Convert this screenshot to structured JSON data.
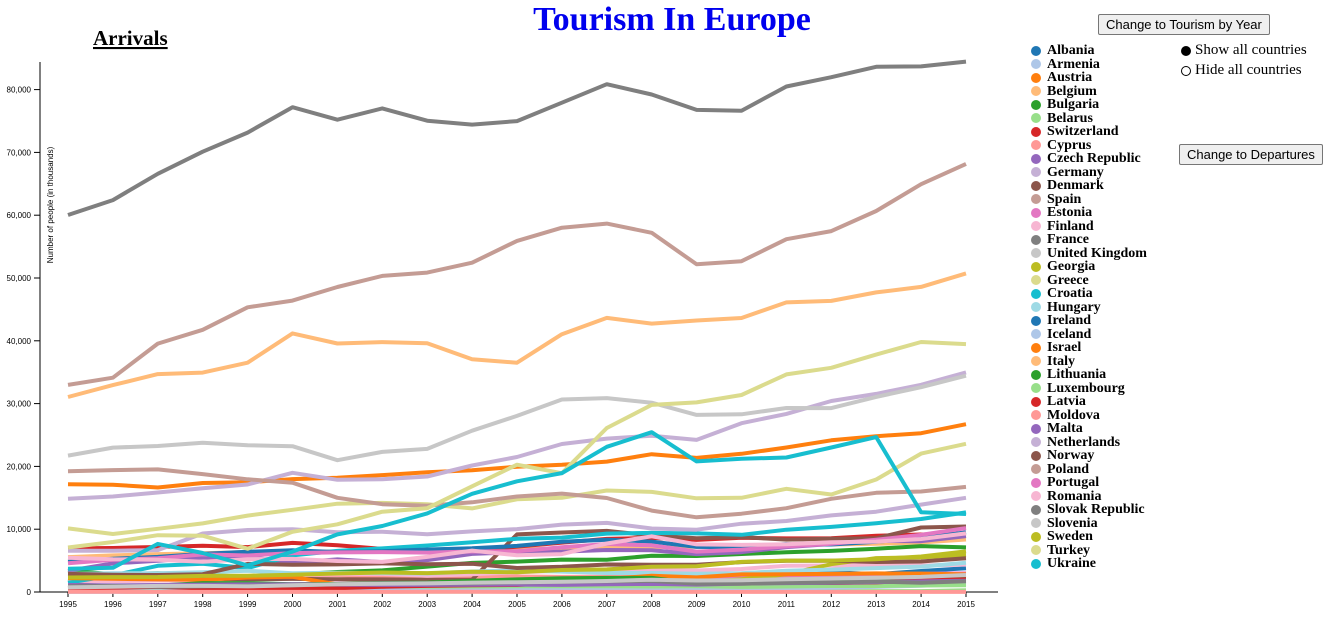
{
  "page": {
    "title": "Tourism In Europe"
  },
  "controls": {
    "year_button": "Change to Tourism by Year",
    "departures_button": "Change to Departures",
    "show_all": "Show all countries",
    "hide_all": "Hide all countries",
    "show_all_selected": true
  },
  "chart_data": {
    "type": "line",
    "title": "Arrivals",
    "xlabel": "",
    "ylabel": "Number of people (in thousands)",
    "x": [
      1995,
      1996,
      1997,
      1998,
      1999,
      2000,
      2001,
      2002,
      2003,
      2004,
      2005,
      2006,
      2007,
      2008,
      2009,
      2010,
      2011,
      2012,
      2013,
      2014,
      2015
    ],
    "ylim": [
      0,
      85000
    ],
    "yticks": [
      0,
      10000,
      20000,
      30000,
      40000,
      50000,
      60000,
      70000,
      80000
    ],
    "ytick_labels": [
      "0",
      "10,000",
      "20,000",
      "30,000",
      "40,000",
      "50,000",
      "60,000",
      "70,000",
      "80,000"
    ],
    "legend_position": "right",
    "series": [
      {
        "name": "Albania",
        "color": "#1f77b4",
        "values": [
          304,
          287,
          119,
          184,
          371,
          317,
          354,
          470,
          557,
          645,
          748,
          937,
          1127,
          1420,
          1856,
          2417,
          2932,
          3156,
          2857,
          3341,
          3784
        ]
      },
      {
        "name": "Armenia",
        "color": "#aec7e8",
        "values": [
          12,
          13,
          23,
          32,
          41,
          45,
          123,
          162,
          206,
          263,
          319,
          381,
          511,
          558,
          575,
          684,
          758,
          843,
          1084,
          1204,
          1192
        ]
      },
      {
        "name": "Austria",
        "color": "#ff7f0e",
        "values": [
          17173,
          17090,
          16647,
          17352,
          17467,
          17982,
          18180,
          18611,
          19078,
          19373,
          19952,
          20269,
          20766,
          21935,
          21355,
          22004,
          23012,
          24151,
          24813,
          25291,
          26719
        ]
      },
      {
        "name": "Belgium",
        "color": "#ffbb78",
        "values": [
          5560,
          5829,
          6037,
          6179,
          6369,
          6457,
          6452,
          6720,
          6690,
          6710,
          6747,
          6995,
          7045,
          7165,
          7217,
          7186,
          7494,
          7560,
          7684,
          7887,
          8355
        ]
      },
      {
        "name": "Bulgaria",
        "color": "#2ca02c",
        "values": [
          3466,
          2795,
          2980,
          2667,
          2472,
          2785,
          3186,
          3433,
          4048,
          4630,
          4837,
          5158,
          5151,
          5780,
          5739,
          6047,
          6328,
          6541,
          6897,
          7311,
          7099
        ]
      },
      {
        "name": "Belarus",
        "color": "#98df8a",
        "values": [
          161,
          234,
          254,
          355,
          60,
          60,
          61,
          63,
          64,
          67,
          91,
          88,
          105,
          91,
          95,
          119,
          116,
          119,
          137,
          137,
          276
        ]
      },
      {
        "name": "Switzerland",
        "color": "#d62728",
        "values": [
          6946,
          7004,
          7165,
          7355,
          7154,
          7821,
          7455,
          6868,
          6530,
          6530,
          7229,
          7863,
          8448,
          8608,
          8294,
          8628,
          8534,
          8566,
          8967,
          9158,
          9305
        ]
      },
      {
        "name": "Cyprus",
        "color": "#ff9896",
        "values": [
          2100,
          1950,
          2088,
          2223,
          2434,
          2686,
          2697,
          2418,
          2303,
          2349,
          2470,
          2401,
          2416,
          2404,
          2141,
          2173,
          2392,
          2465,
          2405,
          2441,
          2659
        ]
      },
      {
        "name": "Czech Republic",
        "color": "#9467bd",
        "values": [
          3381,
          4558,
          4976,
          5482,
          5610,
          4666,
          5194,
          4743,
          5076,
          6061,
          6336,
          6435,
          6680,
          6649,
          6032,
          6334,
          7150,
          7647,
          8144,
          8096,
          8900
        ]
      },
      {
        "name": "Germany",
        "color": "#c5b0d5",
        "values": [
          14847,
          15205,
          15837,
          16511,
          17116,
          18983,
          17861,
          17969,
          18399,
          20137,
          21500,
          23569,
          24421,
          24884,
          24220,
          26875,
          28352,
          30411,
          31545,
          32999,
          34970
        ]
      },
      {
        "name": "Denmark",
        "color": "#8c564b",
        "values": [
          1624,
          1794,
          1969,
          2073,
          2023,
          2088,
          2028,
          2010,
          1935,
          1970,
          9178,
          9474,
          9723,
          8996,
          8547,
          8744,
          8350,
          8468,
          8557,
          10267,
          10424
        ]
      },
      {
        "name": "Spain",
        "color": "#c49c94",
        "values": [
          32971,
          34129,
          39553,
          41748,
          45327,
          46403,
          48565,
          50331,
          50854,
          52429,
          55914,
          58004,
          58666,
          57192,
          52178,
          52677,
          56177,
          57464,
          60675,
          64939,
          68175
        ]
      },
      {
        "name": "Estonia",
        "color": "#e377c2",
        "values": [
          530,
          665,
          730,
          825,
          950,
          1220,
          1320,
          1362,
          1462,
          1750,
          1917,
          1940,
          1900,
          1970,
          1960,
          2372,
          2665,
          2744,
          2868,
          2918,
          2961
        ]
      },
      {
        "name": "Finland",
        "color": "#f7b6d2",
        "values": [
          1779,
          1724,
          1832,
          1857,
          2454,
          2714,
          2826,
          2875,
          2601,
          2840,
          3140,
          3375,
          3519,
          3583,
          3423,
          3670,
          4192,
          4226,
          4226,
          4226,
          4362
        ]
      },
      {
        "name": "France",
        "color": "#7f7f7f",
        "values": [
          60033,
          62406,
          66591,
          70109,
          73147,
          77190,
          75202,
          77012,
          75048,
          74433,
          74988,
          77916,
          80853,
          79218,
          76764,
          76647,
          80499,
          81980,
          83634,
          83701,
          84452
        ]
      },
      {
        "name": "United Kingdom",
        "color": "#c7c7c7",
        "values": [
          21719,
          22998,
          23250,
          23763,
          23368,
          23211,
          20982,
          22307,
          22787,
          25677,
          28039,
          30654,
          30870,
          30142,
          28199,
          28295,
          29306,
          29282,
          31064,
          32613,
          34436
        ]
      },
      {
        "name": "Georgia",
        "color": "#bcbd22",
        "values": [
          85,
          117,
          313,
          317,
          383,
          387,
          302,
          298,
          313,
          368,
          560,
          983,
          1052,
          1290,
          1500,
          2032,
          2822,
          4428,
          5392,
          5516,
          5901
        ]
      },
      {
        "name": "Greece",
        "color": "#dbdb8d",
        "values": [
          10130,
          9233,
          10070,
          10916,
          12164,
          13096,
          14057,
          14180,
          13969,
          13313,
          14765,
          15007,
          16165,
          15939,
          14915,
          15007,
          16427,
          15518,
          17920,
          22033,
          23599
        ]
      },
      {
        "name": "Croatia",
        "color": "#17becf",
        "values": [
          1485,
          2649,
          4178,
          4499,
          3805,
          5831,
          6544,
          6944,
          7409,
          7912,
          8467,
          8659,
          9307,
          9415,
          9335,
          9111,
          9927,
          10369,
          10955,
          11623,
          12683
        ]
      },
      {
        "name": "Hungary",
        "color": "#9edae5",
        "values": [
          2878,
          2992,
          3000,
          3160,
          3380,
          2992,
          3070,
          3013,
          2948,
          3270,
          3446,
          3241,
          3030,
          3023,
          2910,
          3000,
          3380,
          3560,
          3810,
          4040,
          4670
        ]
      },
      {
        "name": "Ireland",
        "color": "#1f77b4",
        "values": [
          4818,
          5289,
          5587,
          6064,
          6403,
          6646,
          6353,
          6476,
          6764,
          6953,
          7333,
          8001,
          8332,
          8026,
          7189,
          7134,
          7630,
          7560,
          8000,
          8600,
          9500
        ]
      },
      {
        "name": "Iceland",
        "color": "#aec7e8",
        "values": [
          190,
          201,
          202,
          232,
          262,
          303,
          296,
          278,
          320,
          360,
          374,
          422,
          485,
          502,
          494,
          489,
          566,
          673,
          807,
          997,
          1289
        ]
      },
      {
        "name": "Israel",
        "color": "#ff7f0e",
        "values": [
          2215,
          2100,
          2010,
          1942,
          2312,
          2417,
          1196,
          862,
          1063,
          1506,
          1903,
          1825,
          2067,
          2572,
          2321,
          2803,
          2820,
          2886,
          2962,
          2927,
          2799
        ]
      },
      {
        "name": "Italy",
        "color": "#ffbb78",
        "values": [
          31052,
          32943,
          34692,
          34933,
          36516,
          41181,
          39563,
          39799,
          39604,
          37071,
          36513,
          41058,
          43654,
          42734,
          43239,
          43626,
          46119,
          46360,
          47704,
          48576,
          50732
        ]
      },
      {
        "name": "Lithuania",
        "color": "#2ca02c",
        "values": [
          650,
          832,
          1012,
          1416,
          1422,
          1226,
          1271,
          1428,
          1491,
          1800,
          2000,
          2180,
          2248,
          2250,
          1341,
          1507,
          1775,
          1900,
          2012,
          2063,
          2071
        ]
      },
      {
        "name": "Luxembourg",
        "color": "#98df8a",
        "values": [
          768,
          724,
          771,
          789,
          869,
          852,
          837,
          885,
          867,
          878,
          913,
          908,
          917,
          878,
          905,
          805,
          871,
          950,
          945,
          1038,
          1090
        ]
      },
      {
        "name": "Latvia",
        "color": "#d62728",
        "values": [
          539,
          665,
          805,
          567,
          489,
          509,
          591,
          848,
          971,
          1080,
          1116,
          1535,
          1653,
          1684,
          1323,
          1373,
          1493,
          1435,
          1536,
          1843,
          2024
        ]
      },
      {
        "name": "Moldova",
        "color": "#ff9896",
        "values": [
          32,
          33,
          21,
          18,
          14,
          18,
          16,
          20,
          24,
          26,
          23,
          14,
          13,
          9,
          9,
          8,
          11,
          12,
          12,
          13,
          14
        ]
      },
      {
        "name": "Malta",
        "color": "#9467bd",
        "values": [
          1116,
          1054,
          1111,
          1182,
          1214,
          1216,
          1180,
          1134,
          1127,
          1156,
          1171,
          1124,
          1244,
          1291,
          1183,
          1339,
          1415,
          1443,
          1582,
          1690,
          1791
        ]
      },
      {
        "name": "Netherlands",
        "color": "#c5b0d5",
        "values": [
          6574,
          6580,
          6674,
          9312,
          9874,
          10003,
          9500,
          9595,
          9181,
          9646,
          10012,
          10739,
          11008,
          10104,
          9921,
          10883,
          11300,
          12205,
          12782,
          13925,
          15007
        ]
      },
      {
        "name": "Norway",
        "color": "#8c564b",
        "values": [
          2880,
          2746,
          2702,
          2829,
          4481,
          4348,
          4395,
          4562,
          4405,
          4506,
          3824,
          4010,
          4377,
          4347,
          4346,
          4767,
          4963,
          4963,
          4778,
          4855,
          5361
        ]
      },
      {
        "name": "Poland",
        "color": "#c49c94",
        "values": [
          19215,
          19410,
          19520,
          18780,
          17950,
          17400,
          15000,
          13980,
          13720,
          14290,
          15200,
          15670,
          14975,
          12960,
          11890,
          12470,
          13350,
          14840,
          15800,
          16000,
          16728
        ]
      },
      {
        "name": "Portugal",
        "color": "#e377c2",
        "values": [
          4572,
          5121,
          5364,
          5988,
          5818,
          6194,
          6299,
          6349,
          6281,
          6450,
          6504,
          7130,
          7649,
          7431,
          6439,
          6756,
          7264,
          7696,
          8320,
          9092,
          10176
        ]
      },
      {
        "name": "Romania",
        "color": "#f7b6d2",
        "values": [
          5445,
          5205,
          5149,
          4831,
          5224,
          5264,
          4938,
          4794,
          5595,
          6600,
          5839,
          6037,
          7722,
          8862,
          7575,
          7498,
          7611,
          7937,
          8019,
          8442,
          9331
        ]
      },
      {
        "name": "Slovak Republic",
        "color": "#7f7f7f",
        "values": [
          903,
          951,
          814,
          896,
          975,
          1053,
          1219,
          1399,
          1387,
          1401,
          1515,
          1612,
          1685,
          1767,
          1298,
          1327,
          1460,
          1511,
          1670,
          1475,
          1721
        ]
      },
      {
        "name": "Slovenia",
        "color": "#c7c7c7",
        "values": [
          732,
          832,
          974,
          977,
          884,
          1090,
          1219,
          1302,
          1373,
          1499,
          1555,
          1617,
          1751,
          1958,
          1824,
          1869,
          2037,
          2156,
          2259,
          2411,
          2707
        ]
      },
      {
        "name": "Sweden",
        "color": "#bcbd22",
        "values": [
          2310,
          2376,
          2388,
          2568,
          2595,
          2746,
          2953,
          3099,
          3003,
          3237,
          3133,
          3500,
          3596,
          4009,
          4100,
          4800,
          5000,
          5000,
          5229,
          5660,
          6482
        ]
      },
      {
        "name": "Turkey",
        "color": "#dbdb8d",
        "values": [
          7083,
          7966,
          9040,
          8960,
          6893,
          9586,
          10783,
          12790,
          13341,
          16826,
          20273,
          18916,
          26122,
          29792,
          30187,
          31364,
          34654,
          35698,
          37795,
          39811,
          39478
        ]
      },
      {
        "name": "Ukraine",
        "color": "#17becf",
        "values": [
          3716,
          3854,
          7658,
          6208,
          4232,
          6431,
          9174,
          10517,
          12514,
          15629,
          17631,
          18936,
          23122,
          25449,
          20798,
          21203,
          21415,
          23013,
          24671,
          12712,
          12428
        ]
      }
    ]
  }
}
